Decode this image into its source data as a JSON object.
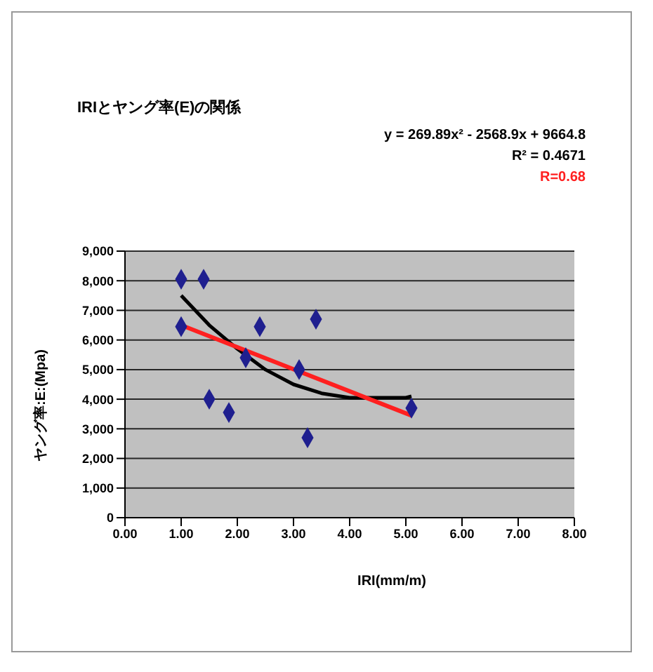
{
  "chart_data": {
    "type": "scatter",
    "title": "IRIとヤング率(E)の関係",
    "xlabel": "IRI(mm/m)",
    "ylabel": "ヤング率:E:(Mpa)",
    "annotations": [
      "R² = 0.4671"
    ],
    "series": [
      {
        "color": "#1f1f8f",
        "marker": "diamond",
        "x": [
          1.0,
          1.4,
          1.0,
          1.5,
          1.85,
          2.15,
          2.4,
          3.1,
          3.25,
          3.4,
          5.1
        ],
        "values": [
          8050,
          8050,
          6450,
          4000,
          3550,
          5400,
          6450,
          5000,
          2700,
          6700,
          3700
        ]
      },
      {
        "type": "line",
        "name": "y = 269.89x² - 2568.9x + 9664.8",
        "color": "#000000",
        "marker": "none",
        "x": [
          1.0,
          1.5,
          2.0,
          2.5,
          3.0,
          3.5,
          4.0,
          4.5,
          5.0,
          5.1
        ],
        "values": [
          7500,
          6500,
          5700,
          5000,
          4500,
          4200,
          4050,
          4050,
          4050,
          4100
        ]
      },
      {
        "type": "line",
        "name": "R=0.68",
        "color": "#ff2020",
        "marker": "none",
        "x": [
          1.0,
          5.1
        ],
        "values": [
          6500,
          3450
        ]
      }
    ],
    "xlim": [
      0,
      8
    ],
    "xticks": [
      {
        "value": 0,
        "label": "0.00"
      },
      {
        "value": 1,
        "label": "1.00"
      },
      {
        "value": 2,
        "label": "2.00"
      },
      {
        "value": 3,
        "label": "3.00"
      },
      {
        "value": 4,
        "label": "4.00"
      },
      {
        "value": 5,
        "label": "5.00"
      },
      {
        "value": 6,
        "label": "6.00"
      },
      {
        "value": 7,
        "label": "7.00"
      },
      {
        "value": 8,
        "label": "8.00"
      }
    ],
    "ylim": [
      0,
      9000
    ],
    "yticks": [
      0,
      {
        "value": 1000,
        "label": "1,000"
      },
      {
        "value": 2000,
        "label": "2,000"
      },
      {
        "value": 3000,
        "label": "3,000"
      },
      {
        "value": 4000,
        "label": "4,000"
      },
      {
        "value": 5000,
        "label": "5,000"
      },
      {
        "value": 6000,
        "label": "6,000"
      },
      {
        "value": 7000,
        "label": "7,000"
      },
      {
        "value": 8000,
        "label": "8,000"
      },
      {
        "value": 9000,
        "label": "9,000"
      }
    ],
    "grid": "y"
  }
}
